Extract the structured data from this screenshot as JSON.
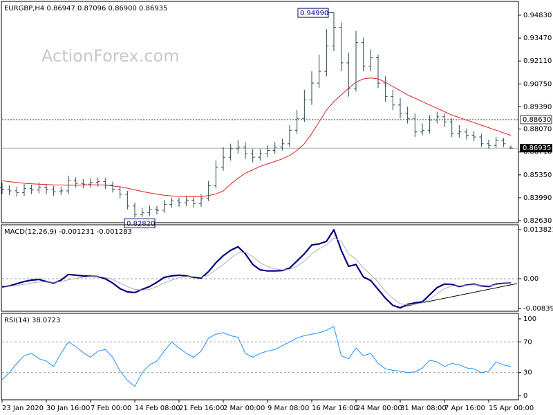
{
  "chart_data": [
    {
      "type": "ohlc",
      "title": "EURGBP,H4  0.86947 0.87096 0.86900 0.86935",
      "watermark": "ActionForex.com",
      "color": "#2a4550",
      "open": [
        0.846,
        0.845,
        0.844,
        0.843,
        0.8455,
        0.8445,
        0.846,
        0.8448,
        0.8435,
        0.844,
        0.85,
        0.8485,
        0.848,
        0.849,
        0.8495,
        0.8475,
        0.845,
        0.842,
        0.835,
        0.83,
        0.831,
        0.833,
        0.8325,
        0.836,
        0.838,
        0.837,
        0.8385,
        0.8365,
        0.8395,
        0.847,
        0.858,
        0.864,
        0.869,
        0.87,
        0.866,
        0.864,
        0.866,
        0.868,
        0.87,
        0.872,
        0.88,
        0.887,
        0.898,
        0.908,
        0.915,
        0.93,
        0.941,
        0.92,
        0.905,
        0.932,
        0.918,
        0.923,
        0.908,
        0.9,
        0.895,
        0.89,
        0.887,
        0.879,
        0.88,
        0.886,
        0.888,
        0.885,
        0.878,
        0.879,
        0.877,
        0.876,
        0.872,
        0.871,
        0.874,
        0.86947
      ],
      "high": [
        0.849,
        0.8475,
        0.8465,
        0.848,
        0.8475,
        0.849,
        0.848,
        0.847,
        0.8465,
        0.853,
        0.852,
        0.851,
        0.8515,
        0.852,
        0.8515,
        0.8495,
        0.847,
        0.844,
        0.837,
        0.834,
        0.8355,
        0.835,
        0.8385,
        0.84,
        0.84,
        0.841,
        0.8405,
        0.842,
        0.85,
        0.862,
        0.87,
        0.872,
        0.874,
        0.873,
        0.869,
        0.869,
        0.871,
        0.873,
        0.875,
        0.883,
        0.892,
        0.904,
        0.915,
        0.925,
        0.94,
        0.9499,
        0.944,
        0.926,
        0.939,
        0.935,
        0.928,
        0.925,
        0.912,
        0.904,
        0.899,
        0.894,
        0.89,
        0.884,
        0.889,
        0.891,
        0.89,
        0.887,
        0.883,
        0.881,
        0.8795,
        0.878,
        0.8745,
        0.876,
        0.8755,
        0.87096
      ],
      "low": [
        0.842,
        0.8415,
        0.8405,
        0.841,
        0.842,
        0.8425,
        0.842,
        0.841,
        0.8415,
        0.842,
        0.846,
        0.8455,
        0.846,
        0.8465,
        0.845,
        0.843,
        0.8395,
        0.833,
        0.8282,
        0.8285,
        0.829,
        0.83,
        0.831,
        0.834,
        0.8345,
        0.835,
        0.834,
        0.8345,
        0.838,
        0.8455,
        0.856,
        0.862,
        0.866,
        0.863,
        0.861,
        0.862,
        0.864,
        0.866,
        0.868,
        0.87,
        0.878,
        0.885,
        0.895,
        0.905,
        0.912,
        0.927,
        0.915,
        0.9,
        0.903,
        0.915,
        0.915,
        0.905,
        0.897,
        0.892,
        0.887,
        0.884,
        0.876,
        0.877,
        0.878,
        0.884,
        0.882,
        0.876,
        0.8755,
        0.8745,
        0.8735,
        0.87,
        0.869,
        0.8695,
        0.87,
        0.869
      ],
      "close": [
        0.845,
        0.844,
        0.843,
        0.8455,
        0.8445,
        0.846,
        0.8448,
        0.8435,
        0.844,
        0.85,
        0.8485,
        0.848,
        0.849,
        0.8495,
        0.8475,
        0.845,
        0.842,
        0.835,
        0.83,
        0.831,
        0.833,
        0.8325,
        0.836,
        0.838,
        0.837,
        0.8385,
        0.8365,
        0.8395,
        0.847,
        0.858,
        0.864,
        0.869,
        0.87,
        0.866,
        0.864,
        0.866,
        0.868,
        0.87,
        0.872,
        0.88,
        0.887,
        0.898,
        0.908,
        0.915,
        0.93,
        0.941,
        0.92,
        0.905,
        0.932,
        0.918,
        0.923,
        0.908,
        0.9,
        0.895,
        0.89,
        0.887,
        0.879,
        0.88,
        0.886,
        0.888,
        0.885,
        0.878,
        0.879,
        0.877,
        0.876,
        0.872,
        0.871,
        0.874,
        0.872,
        0.86935
      ],
      "series": [
        {
          "color": "#e02020",
          "width": 1,
          "values": [
            0.85,
            0.8495,
            0.849,
            0.8485,
            0.8482,
            0.848,
            0.8478,
            0.8476,
            0.8475,
            0.8474,
            0.8474,
            0.8475,
            0.8476,
            0.8476,
            0.8474,
            0.847,
            0.8464,
            0.8456,
            0.8446,
            0.8436,
            0.8428,
            0.842,
            0.8414,
            0.841,
            0.8408,
            0.8406,
            0.8405,
            0.8406,
            0.8412,
            0.8422,
            0.844,
            0.848,
            0.8515,
            0.8545,
            0.8565,
            0.8585,
            0.86,
            0.8615,
            0.863,
            0.865,
            0.868,
            0.872,
            0.878,
            0.885,
            0.892,
            0.897,
            0.901,
            0.905,
            0.9085,
            0.9105,
            0.911,
            0.9105,
            0.9085,
            0.906,
            0.9035,
            0.901,
            0.899,
            0.897,
            0.895,
            0.893,
            0.891,
            0.889,
            0.8875,
            0.886,
            0.8845,
            0.883,
            0.8815,
            0.88,
            0.8785,
            0.877
          ]
        }
      ],
      "ylim": [
        0.8251,
        0.9565
      ],
      "yticks": [
        {
          "value": 0.8263,
          "label": "0.82630"
        },
        {
          "value": 0.8399,
          "label": "0.83990"
        },
        {
          "value": 0.8535,
          "label": "0.85350"
        },
        {
          "value": 0.8671,
          "label": "0.86710"
        },
        {
          "value": 0.8807,
          "label": "0.88070"
        },
        {
          "value": 0.8939,
          "label": "0.89390"
        },
        {
          "value": 0.9075,
          "label": "0.90750"
        },
        {
          "value": 0.9211,
          "label": "0.92110"
        },
        {
          "value": 0.9347,
          "label": "0.93470"
        },
        {
          "value": 0.9483,
          "label": "0.94830"
        }
      ],
      "levels": [
        {
          "value": 0.8863,
          "label": "0.88630"
        }
      ],
      "last_price": {
        "value": 0.86935,
        "label": "0.86935"
      },
      "high_label": {
        "value": 0.9499,
        "label": "0.94990"
      },
      "low_label": {
        "value": 0.8282,
        "label": "0.82820"
      }
    },
    {
      "type": "line",
      "title": "MACD(12,26,9) -0.001231 -0.001283",
      "series": [
        {
          "color": "#000080",
          "width": 2.2,
          "values": [
            -0.0023,
            -0.002,
            -0.0014,
            -0.0008,
            -0.0004,
            -0.0002,
            -0.0008,
            -0.0012,
            -0.0004,
            0.0012,
            0.001,
            0.0008,
            0.0007,
            0.0006,
            0.0,
            -0.0012,
            -0.0028,
            -0.0037,
            -0.0039,
            -0.003,
            -0.0022,
            -0.001,
            0.0004,
            0.0008,
            0.001,
            0.0008,
            0.0004,
            0.0002,
            0.002,
            0.0045,
            0.0065,
            0.008,
            0.009,
            0.007,
            0.004,
            0.0025,
            0.0022,
            0.0022,
            0.0023,
            0.003,
            0.005,
            0.007,
            0.0095,
            0.0098,
            0.0105,
            0.0138,
            0.008,
            0.0035,
            0.004,
            0.0005,
            -0.0005,
            -0.003,
            -0.0055,
            -0.0075,
            -0.0082,
            -0.0072,
            -0.0068,
            -0.0065,
            -0.0045,
            -0.0025,
            -0.0015,
            -0.0016,
            -0.0022,
            -0.0018,
            -0.0015,
            -0.002,
            -0.0022,
            -0.0015,
            -0.0013,
            -0.001231
          ]
        },
        {
          "color": "#b0b0b0",
          "width": 1,
          "values": [
            -0.002,
            -0.0021,
            -0.0019,
            -0.0016,
            -0.0012,
            -0.0009,
            -0.0009,
            -0.001,
            -0.0008,
            -0.0003,
            0.0001,
            0.0004,
            0.0006,
            0.0006,
            0.0004,
            -0.0002,
            -0.0012,
            -0.0022,
            -0.003,
            -0.0032,
            -0.003,
            -0.0022,
            -0.0012,
            -0.0004,
            0.0003,
            0.0006,
            0.0006,
            0.0004,
            0.001,
            0.0025,
            0.004,
            0.0058,
            0.0072,
            0.0075,
            0.0062,
            0.0045,
            0.0034,
            0.0028,
            0.0025,
            0.0026,
            0.0035,
            0.005,
            0.007,
            0.0085,
            0.0095,
            0.0115,
            0.0105,
            0.007,
            0.0055,
            0.003,
            0.0012,
            -0.001,
            -0.0035,
            -0.0055,
            -0.007,
            -0.0074,
            -0.0072,
            -0.0068,
            -0.0058,
            -0.0042,
            -0.0028,
            -0.002,
            -0.002,
            -0.0019,
            -0.0017,
            -0.0018,
            -0.002,
            -0.0017,
            -0.0014,
            -0.001283
          ]
        }
      ],
      "ylim": [
        -0.00915,
        0.01518
      ],
      "yticks": [
        0.013821,
        {
          "value": 0,
          "label": "0.00"
        },
        -0.008397
      ],
      "levels": [
        0
      ]
    },
    {
      "type": "line",
      "title": "RSI(14) 38.0723",
      "series": [
        {
          "color": "#1e90ff",
          "width": 1,
          "values": [
            21,
            30,
            42,
            52,
            55,
            48,
            45,
            38,
            55,
            70,
            64,
            56,
            50,
            58,
            60,
            50,
            32,
            20,
            12,
            30,
            40,
            45,
            58,
            70,
            62,
            55,
            50,
            58,
            75,
            80,
            82,
            78,
            76,
            55,
            50,
            55,
            58,
            60,
            65,
            70,
            75,
            78,
            80,
            82,
            85,
            90,
            52,
            48,
            62,
            52,
            55,
            42,
            35,
            33,
            32,
            30,
            31,
            36,
            46,
            44,
            38,
            42,
            40,
            36,
            35,
            30,
            32,
            44,
            40,
            38.0723
          ]
        }
      ],
      "ylim": [
        -5.4,
        107.2
      ],
      "yticks": [
        100,
        70,
        30,
        0
      ],
      "levels": [
        70,
        30
      ],
      "categories": [
        "23 Jan 2020",
        null,
        null,
        null,
        null,
        null,
        "30 Jan 16:00",
        null,
        null,
        null,
        null,
        null,
        "7 Feb 00:00",
        null,
        null,
        null,
        null,
        null,
        "14 Feb 08:00",
        null,
        null,
        null,
        null,
        null,
        "21 Feb 16:00",
        null,
        null,
        null,
        null,
        null,
        "2 Mar 00:00",
        null,
        null,
        null,
        null,
        null,
        "9 Mar 08:00",
        null,
        null,
        null,
        null,
        null,
        "16 Mar 16:00",
        null,
        null,
        null,
        null,
        null,
        "24 Mar 00:00",
        null,
        null,
        null,
        null,
        null,
        "31 Mar 08:00",
        null,
        null,
        null,
        null,
        null,
        "7 Apr 16:00",
        null,
        null,
        null,
        null,
        null,
        "15 Apr 00:00",
        null,
        null,
        null
      ]
    }
  ]
}
